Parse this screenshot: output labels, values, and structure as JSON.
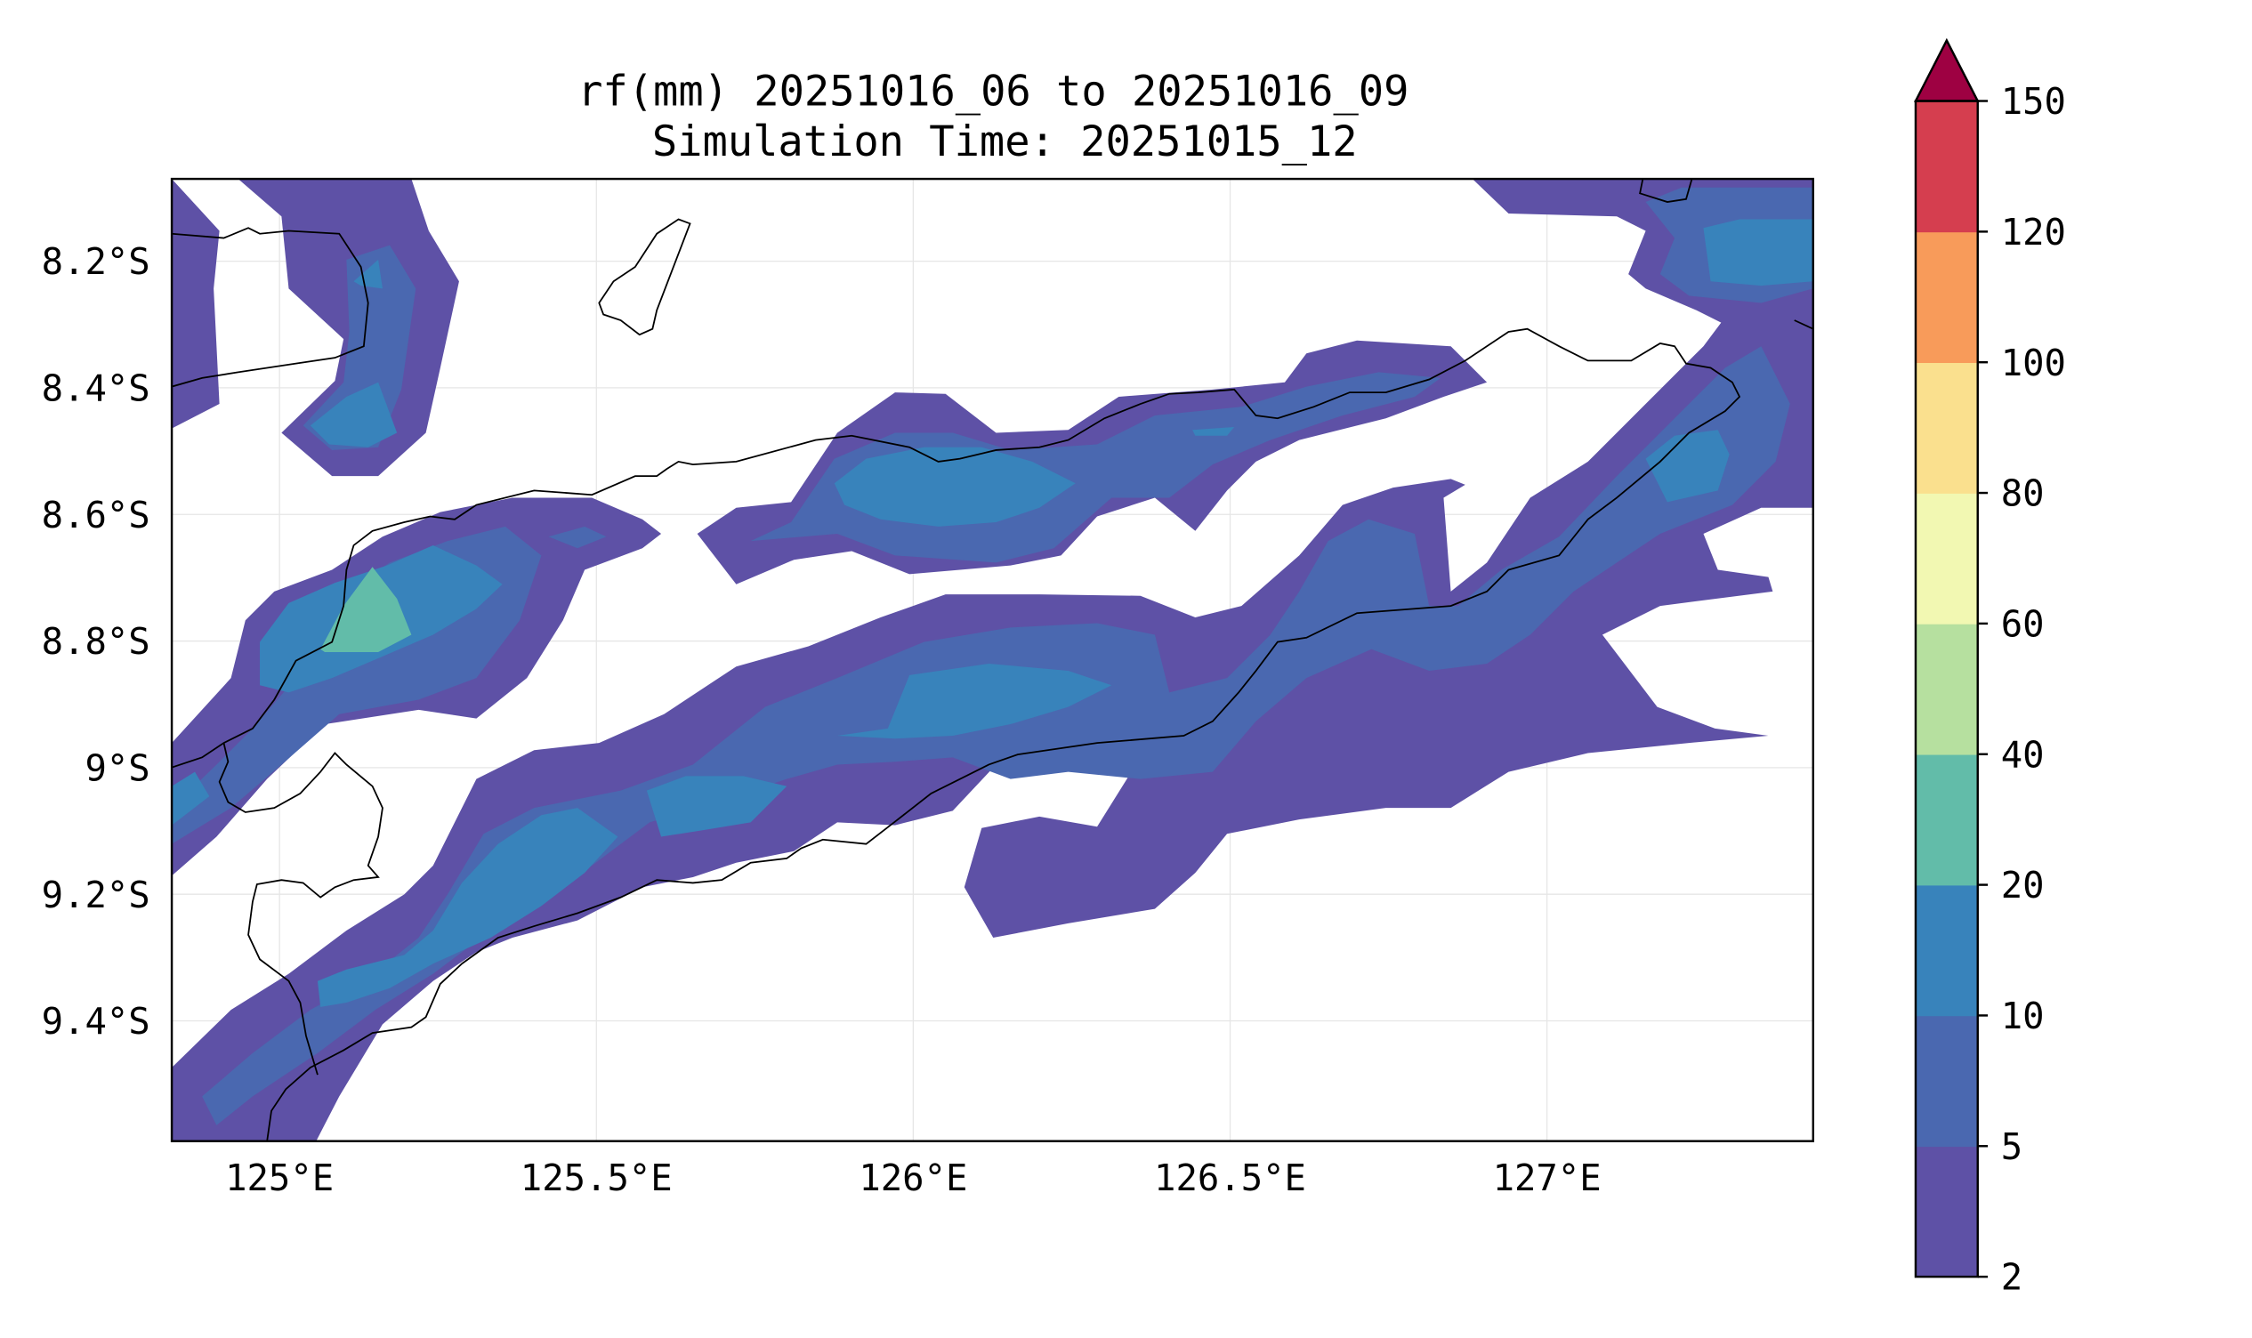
{
  "title": {
    "line1": "rf(mm) 20251016_06 to 20251016_09",
    "line2": "Simulation Time: 20251015_12"
  },
  "map": {
    "variable": "rf",
    "units": "mm",
    "lon_range": [
      124.83,
      127.42
    ],
    "lat_range": [
      -9.59,
      -8.07
    ],
    "x_ticks": [
      {
        "value": 125.0,
        "label": "125°E"
      },
      {
        "value": 125.5,
        "label": "125.5°E"
      },
      {
        "value": 126.0,
        "label": "126°E"
      },
      {
        "value": 126.5,
        "label": "126.5°E"
      },
      {
        "value": 127.0,
        "label": "127°E"
      }
    ],
    "y_ticks": [
      {
        "value": -8.2,
        "label": "8.2°S"
      },
      {
        "value": -8.4,
        "label": "8.4°S"
      },
      {
        "value": -8.6,
        "label": "8.6°S"
      },
      {
        "value": -8.8,
        "label": "8.8°S"
      },
      {
        "value": -9.0,
        "label": "9°S"
      },
      {
        "value": -9.2,
        "label": "9.2°S"
      },
      {
        "value": -9.4,
        "label": "9.4°S"
      }
    ],
    "gridlines": true
  },
  "colorbar": {
    "levels": [
      {
        "value": 2,
        "label": "2"
      },
      {
        "value": 5,
        "label": "5"
      },
      {
        "value": 10,
        "label": "10"
      },
      {
        "value": 20,
        "label": "20"
      },
      {
        "value": 40,
        "label": "40"
      },
      {
        "value": 60,
        "label": "60"
      },
      {
        "value": 80,
        "label": "80"
      },
      {
        "value": 100,
        "label": "100"
      },
      {
        "value": 120,
        "label": "120"
      },
      {
        "value": 150,
        "label": "150"
      }
    ],
    "colors": [
      "#5e51a6",
      "#4a68b0",
      "#3883bb",
      "#62bca9",
      "#b6e09f",
      "#f2f8b2",
      "#fae08e",
      "#f89b5a",
      "#d53e4f"
    ],
    "extend_color": "#9e0142",
    "extend": "max"
  }
}
